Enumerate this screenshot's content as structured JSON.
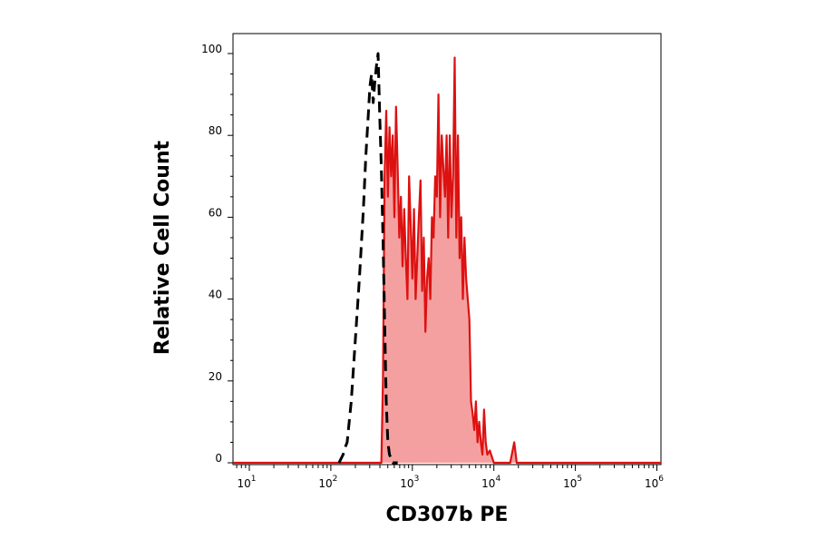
{
  "chart_data": {
    "type": "area",
    "xlabel": "CD307b PE",
    "ylabel": "Relative Cell Count",
    "x_scale": "log10",
    "xlim": [
      0.8,
      6.05
    ],
    "ylim": [
      0,
      100
    ],
    "y_ticks": [
      "0",
      "20",
      "40",
      "60",
      "80",
      "100"
    ],
    "x_ticks": [
      {
        "base": "10",
        "exp": "1",
        "log": 1
      },
      {
        "base": "10",
        "exp": "2",
        "log": 2
      },
      {
        "base": "10",
        "exp": "3",
        "log": 3
      },
      {
        "base": "10",
        "exp": "4",
        "log": 4
      },
      {
        "base": "10",
        "exp": "5",
        "log": 5
      },
      {
        "base": "10",
        "exp": "6",
        "log": 6
      }
    ],
    "grid": false,
    "legend": "none",
    "series": [
      {
        "style": "dashed",
        "color": "#000000",
        "fill": "none",
        "x_log": [
          2.1,
          2.15,
          2.18,
          2.2,
          2.25,
          2.3,
          2.35,
          2.4,
          2.43,
          2.46,
          2.48,
          2.5,
          2.52,
          2.54,
          2.56,
          2.58,
          2.6,
          2.62,
          2.64,
          2.66,
          2.68,
          2.7,
          2.72,
          2.74,
          2.76,
          2.78,
          2.8,
          2.82
        ],
        "y": [
          0,
          2,
          4,
          5,
          15,
          30,
          45,
          62,
          75,
          85,
          92,
          95,
          88,
          93,
          97,
          100,
          85,
          72,
          55,
          35,
          15,
          5,
          2,
          1,
          0,
          0,
          0,
          0
        ]
      },
      {
        "style": "solid",
        "color": "#dd1111",
        "fill": "#f5a0a0",
        "x_log": [
          0.8,
          2.62,
          2.64,
          2.66,
          2.68,
          2.7,
          2.72,
          2.74,
          2.76,
          2.78,
          2.8,
          2.82,
          2.84,
          2.86,
          2.88,
          2.9,
          2.92,
          2.94,
          2.96,
          2.98,
          3.0,
          3.02,
          3.04,
          3.06,
          3.08,
          3.1,
          3.12,
          3.14,
          3.16,
          3.18,
          3.2,
          3.22,
          3.24,
          3.26,
          3.28,
          3.3,
          3.32,
          3.34,
          3.36,
          3.38,
          3.4,
          3.42,
          3.44,
          3.46,
          3.48,
          3.5,
          3.52,
          3.54,
          3.56,
          3.58,
          3.6,
          3.62,
          3.64,
          3.66,
          3.7,
          3.72,
          3.74,
          3.76,
          3.78,
          3.8,
          3.82,
          3.84,
          3.86,
          3.88,
          3.9,
          3.92,
          3.95,
          4.0,
          4.2,
          4.25,
          4.28,
          4.31,
          6.05
        ],
        "y": [
          0,
          0,
          20,
          70,
          86,
          65,
          82,
          70,
          80,
          60,
          87,
          72,
          55,
          65,
          48,
          62,
          50,
          40,
          70,
          58,
          45,
          62,
          40,
          50,
          60,
          69,
          42,
          55,
          32,
          45,
          50,
          40,
          60,
          55,
          70,
          65,
          90,
          60,
          80,
          72,
          65,
          80,
          55,
          80,
          60,
          70,
          99,
          55,
          80,
          50,
          60,
          40,
          55,
          45,
          35,
          15,
          12,
          8,
          15,
          5,
          10,
          5,
          2,
          13,
          5,
          2,
          3,
          0,
          0,
          5,
          0,
          0,
          0
        ]
      }
    ]
  }
}
